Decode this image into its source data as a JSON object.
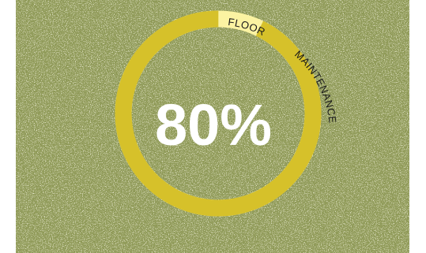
{
  "gauge": {
    "value_percent": 80,
    "value_text": "80%",
    "label_primary": "FLOOR",
    "label_secondary": "MAINTENANCE",
    "colors": {
      "background": "#8f9a58",
      "ring_fill": "#d6c12a",
      "ring_remaining": "#fbf3a2",
      "value_text": "#ffffff",
      "label_text": "#1a1a1a"
    }
  }
}
